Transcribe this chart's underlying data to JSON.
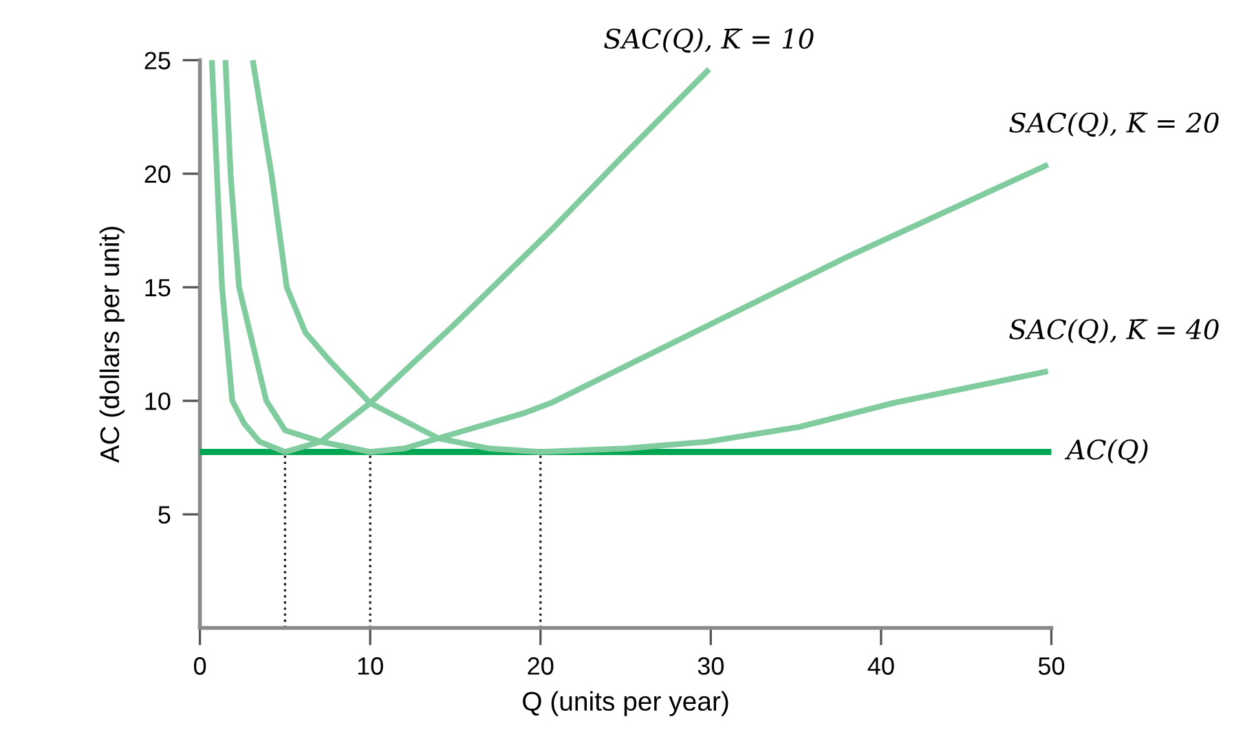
{
  "chart_data": {
    "type": "line",
    "xlabel": "Q (units per year)",
    "ylabel": "AC (dollars per unit)",
    "xlim": [
      0,
      50
    ],
    "ylim": [
      0,
      25
    ],
    "xticks": [
      0,
      10,
      20,
      30,
      40,
      50
    ],
    "yticks": [
      5,
      10,
      15,
      20,
      25
    ],
    "grid": false,
    "legend": false,
    "marker": "none",
    "line_style": "solid",
    "series": [
      {
        "name": "SAC(Q), K̄ = 10",
        "color": "#80cc9f",
        "x": [
          0.7,
          1.0,
          1.3,
          1.9,
          2.6,
          3.5,
          5,
          7.1,
          10,
          15,
          20.6,
          25,
          29.9
        ],
        "values": [
          25,
          20,
          15,
          10,
          9,
          8.2,
          7.75,
          8.2,
          9.9,
          13.4,
          17.5,
          20.9,
          24.6
        ]
      },
      {
        "name": "SAC(Q), K̄ = 20",
        "color": "#80cc9f",
        "x": [
          1.5,
          1.8,
          2.3,
          3.9,
          5.0,
          7.1,
          10,
          12,
          14,
          19,
          20.6,
          29.8,
          37.9,
          49.8
        ],
        "values": [
          25,
          20,
          15,
          10,
          8.7,
          8.2,
          7.75,
          7.9,
          8.35,
          9.45,
          9.9,
          13.3,
          16.3,
          20.4
        ]
      },
      {
        "name": "SAC(Q), K̄ = 40",
        "color": "#80cc9f",
        "x": [
          3.1,
          4.2,
          5.1,
          6.2,
          7.7,
          10,
          14,
          17,
          20,
          25,
          29.8,
          35.2,
          40.7,
          49.8
        ],
        "values": [
          25,
          20,
          15,
          13,
          11.7,
          9.9,
          8.35,
          7.9,
          7.75,
          7.9,
          8.2,
          8.85,
          9.9,
          11.3
        ]
      },
      {
        "name": "AC(Q)",
        "color": "#00a651",
        "x": [
          0,
          50
        ],
        "values": [
          7.75,
          7.75
        ]
      }
    ],
    "ref_lines": [
      {
        "axis": "x",
        "value": 5,
        "line_style": "dotted"
      },
      {
        "axis": "x",
        "value": 10,
        "line_style": "dotted"
      },
      {
        "axis": "x",
        "value": 20,
        "line_style": "dotted"
      }
    ]
  }
}
